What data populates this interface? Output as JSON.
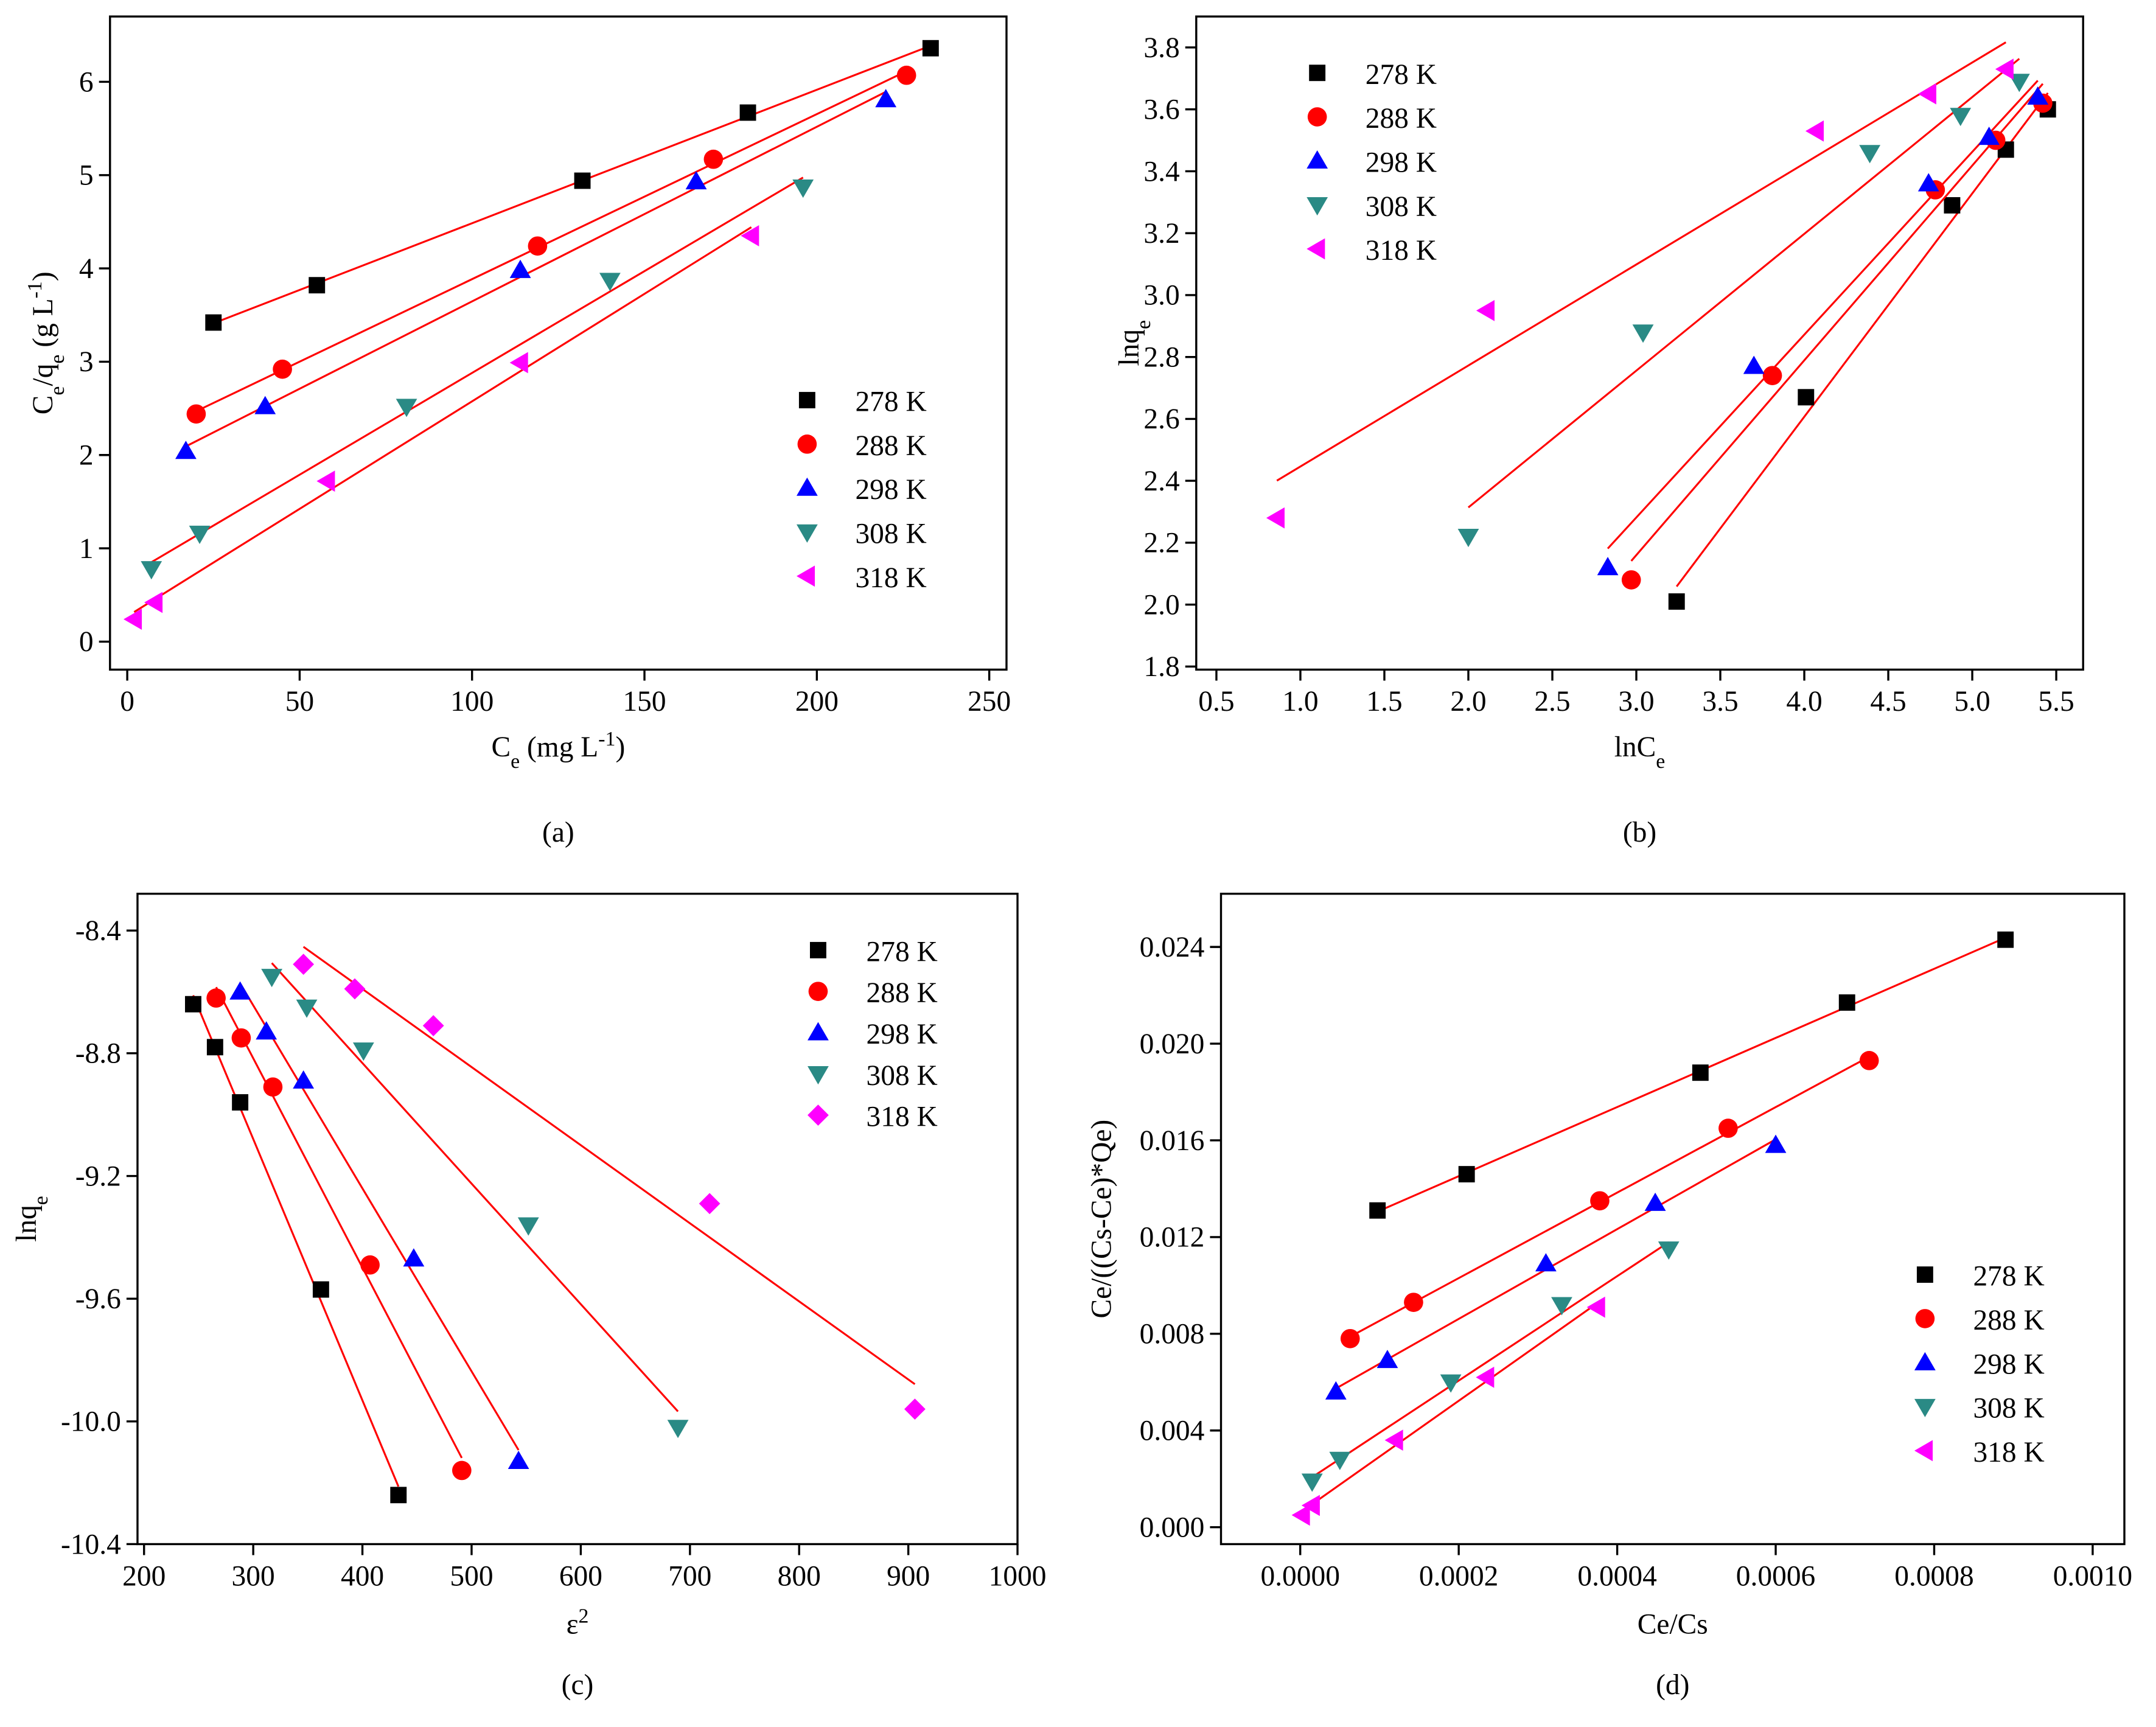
{
  "chart_data": [
    {
      "type": "scatter",
      "label": "(a)",
      "legend": "lower right",
      "xlabel": [
        [
          "C",
          ""
        ],
        [
          "e",
          "sub"
        ],
        [
          " (mg L",
          ""
        ],
        [
          "-1",
          "sup"
        ],
        [
          ")",
          ""
        ]
      ],
      "ylabel": [
        [
          "C",
          ""
        ],
        [
          "e",
          "sub"
        ],
        [
          "/q",
          ""
        ],
        [
          "e",
          "sub"
        ],
        [
          " (g L",
          ""
        ],
        [
          "-1",
          "sup"
        ],
        [
          ")",
          ""
        ]
      ],
      "xlim": [
        -5,
        255
      ],
      "ylim": [
        -0.3,
        6.7
      ],
      "xticks": [
        0,
        50,
        100,
        150,
        200,
        250
      ],
      "yticks": [
        0,
        1,
        2,
        3,
        4,
        5,
        6
      ],
      "series": [
        {
          "name": "278 K",
          "color": "#000000",
          "marker": "square",
          "x": [
            25,
            55,
            132,
            180,
            233
          ],
          "values": [
            3.42,
            3.82,
            4.94,
            5.67,
            6.36
          ]
        },
        {
          "name": "288 K",
          "color": "#ff0000",
          "marker": "circle",
          "x": [
            20,
            45,
            119,
            170,
            226
          ],
          "values": [
            2.44,
            2.92,
            4.24,
            5.17,
            6.07
          ]
        },
        {
          "name": "298 K",
          "color": "#0000ff",
          "marker": "triangle-up",
          "x": [
            17,
            40,
            114,
            165,
            220
          ],
          "values": [
            2.04,
            2.52,
            3.98,
            4.93,
            5.81
          ]
        },
        {
          "name": "308 K",
          "color": "#2a8a85",
          "marker": "triangle-down",
          "x": [
            7,
            21,
            81,
            140,
            196
          ],
          "values": [
            0.78,
            1.16,
            2.52,
            3.87,
            4.87
          ]
        },
        {
          "name": "318 K",
          "color": "#ff00ff",
          "marker": "triangle-left",
          "x": [
            2,
            8,
            58,
            114,
            181
          ],
          "values": [
            0.24,
            0.42,
            1.72,
            2.99,
            4.35
          ]
        }
      ]
    },
    {
      "type": "scatter",
      "label": "(b)",
      "legend": "upper left",
      "xlabel": [
        [
          "lnC",
          ""
        ],
        [
          "e",
          "sub"
        ]
      ],
      "ylabel": [
        [
          "lnq",
          ""
        ],
        [
          "e",
          "sub"
        ]
      ],
      "xlim": [
        0.38,
        5.66
      ],
      "ylim": [
        1.79,
        3.9
      ],
      "xticks": [
        0.5,
        {
          "value": 1,
          "label": "1.0"
        },
        1.5,
        {
          "value": 2,
          "label": "2.0"
        },
        2.5,
        {
          "value": 3,
          "label": "3.0"
        },
        3.5,
        {
          "value": 4,
          "label": "4.0"
        },
        4.5,
        {
          "value": 5,
          "label": "5.0"
        },
        5.5
      ],
      "yticks": [
        1.8,
        {
          "value": 2,
          "label": "2.0"
        },
        2.2,
        2.4,
        2.6,
        2.8,
        {
          "value": 3,
          "label": "3.0"
        },
        3.2,
        3.4,
        3.6,
        3.8
      ],
      "series": [
        {
          "name": "278 K",
          "color": "#000000",
          "marker": "square",
          "x": [
            3.24,
            4.01,
            4.88,
            5.2,
            5.45
          ],
          "values": [
            2.01,
            2.67,
            3.29,
            3.47,
            3.6
          ]
        },
        {
          "name": "288 K",
          "color": "#ff0000",
          "marker": "circle",
          "x": [
            2.97,
            3.81,
            4.78,
            5.14,
            5.42
          ],
          "values": [
            2.08,
            2.74,
            3.34,
            3.5,
            3.62
          ]
        },
        {
          "name": "298 K",
          "color": "#0000ff",
          "marker": "triangle-up",
          "x": [
            2.83,
            3.7,
            4.74,
            5.1,
            5.39
          ],
          "values": [
            2.12,
            2.77,
            3.36,
            3.51,
            3.64
          ]
        },
        {
          "name": "308 K",
          "color": "#2a8a85",
          "marker": "triangle-down",
          "x": [
            2.0,
            3.04,
            4.39,
            4.93,
            5.28
          ],
          "values": [
            2.22,
            2.88,
            3.46,
            3.58,
            3.69
          ]
        },
        {
          "name": "318 K",
          "color": "#ff00ff",
          "marker": "triangle-left",
          "x": [
            0.86,
            2.11,
            4.07,
            4.74,
            5.2
          ],
          "values": [
            2.28,
            2.95,
            3.53,
            3.65,
            3.73
          ]
        }
      ]
    },
    {
      "type": "scatter",
      "label": "(c)",
      "legend": "upper right",
      "xlabel": [
        [
          "ε",
          ""
        ],
        [
          "2",
          "sup"
        ]
      ],
      "ylabel": [
        [
          "lnq",
          ""
        ],
        [
          "e",
          "sub"
        ]
      ],
      "xlim": [
        194,
        1000
      ],
      "ylim": [
        -10.4,
        -8.28
      ],
      "xticks": [
        200,
        300,
        400,
        500,
        600,
        700,
        800,
        900,
        1000
      ],
      "yticks": [
        -8.4,
        -8.8,
        {
          "value": -9.2,
          "label": "-9.2"
        },
        {
          "value": -9.6,
          "label": "-9.6"
        },
        {
          "value": -10,
          "label": "-10.0"
        },
        -10.4
      ],
      "series": [
        {
          "name": "278 K",
          "color": "#000000",
          "marker": "square",
          "x": [
            245,
            265,
            288,
            362,
            433
          ],
          "values": [
            -8.64,
            -8.78,
            -8.96,
            -9.57,
            -10.24
          ]
        },
        {
          "name": "288 K",
          "color": "#ff0000",
          "marker": "circle",
          "x": [
            266,
            289,
            318,
            407,
            491
          ],
          "values": [
            -8.62,
            -8.75,
            -8.91,
            -9.49,
            -10.16
          ]
        },
        {
          "name": "298 K",
          "color": "#0000ff",
          "marker": "triangle-up",
          "x": [
            288,
            312,
            346,
            447,
            543
          ],
          "values": [
            -8.6,
            -8.73,
            -8.89,
            -9.47,
            -10.13
          ]
        },
        {
          "name": "308 K",
          "color": "#2a8a85",
          "marker": "triangle-down",
          "x": [
            317,
            349,
            401,
            552,
            689
          ],
          "values": [
            -8.55,
            -8.65,
            -8.79,
            -9.36,
            -10.02
          ]
        },
        {
          "name": "318 K",
          "color": "#ff00ff",
          "marker": "diamond",
          "x": [
            346,
            393,
            465,
            718,
            906
          ],
          "values": [
            -8.51,
            -8.59,
            -8.71,
            -9.29,
            -9.96
          ]
        }
      ]
    },
    {
      "type": "scatter",
      "label": "(d)",
      "legend": "lower right",
      "xlabel": [
        [
          "Ce/Cs",
          ""
        ]
      ],
      "ylabel": [
        [
          "Ce/((Cs-Ce)*Qe)",
          ""
        ]
      ],
      "xlim": [
        -0.0001,
        0.00104
      ],
      "ylim": [
        -0.0007,
        0.0262
      ],
      "xticks": [
        {
          "value": 0,
          "label": "0.0000"
        },
        0.0002,
        0.0004,
        0.0006,
        0.0008,
        {
          "value": 0.001,
          "label": "0.0010"
        }
      ],
      "yticks": [
        {
          "value": 0,
          "label": "0.000"
        },
        0.004,
        0.008,
        0.012,
        0.016,
        {
          "value": 0.02,
          "label": "0.020"
        },
        0.024
      ],
      "series": [
        {
          "name": "278 K",
          "color": "#000000",
          "marker": "square",
          "x": [
            9.75e-05,
            0.00021,
            0.000505,
            0.00069,
            0.00089
          ],
          "values": [
            0.0131,
            0.0146,
            0.0188,
            0.0217,
            0.0243
          ]
        },
        {
          "name": "288 K",
          "color": "#ff0000",
          "marker": "circle",
          "x": [
            6.3e-05,
            0.000143,
            0.000378,
            0.00054,
            0.000718
          ],
          "values": [
            0.0078,
            0.0093,
            0.0135,
            0.0165,
            0.0193
          ]
        },
        {
          "name": "298 K",
          "color": "#0000ff",
          "marker": "triangle-up",
          "x": [
            4.5e-05,
            0.00011,
            0.00031,
            0.000448,
            0.0006
          ],
          "values": [
            0.0056,
            0.0069,
            0.0109,
            0.0134,
            0.0158
          ]
        },
        {
          "name": "308 K",
          "color": "#2a8a85",
          "marker": "triangle-down",
          "x": [
            1.5e-05,
            5e-05,
            0.00019,
            0.00033,
            0.000465
          ],
          "values": [
            0.0019,
            0.0028,
            0.006,
            0.0092,
            0.0115
          ]
        },
        {
          "name": "318 K",
          "color": "#ff00ff",
          "marker": "triangle-left",
          "x": [
            2.5e-06,
            1.5e-05,
            0.00012,
            0.000235,
            0.000375
          ],
          "values": [
            0.0005,
            0.0009,
            0.0036,
            0.0062,
            0.0091
          ]
        }
      ]
    }
  ]
}
